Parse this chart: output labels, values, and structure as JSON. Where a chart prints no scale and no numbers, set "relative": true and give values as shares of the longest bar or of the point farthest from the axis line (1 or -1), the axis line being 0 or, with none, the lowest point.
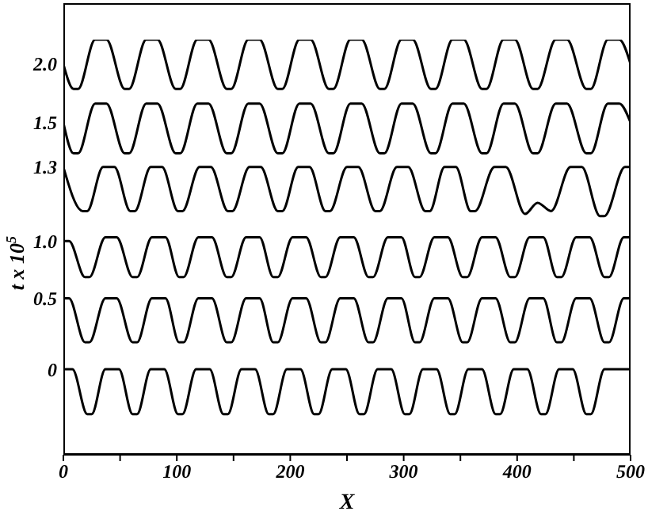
{
  "chart_data": {
    "type": "line",
    "relative": true,
    "xlabel": "X",
    "ylabel": "t x 10$^{5}$",
    "xlim": [
      0,
      500
    ],
    "xticks": [
      0,
      {
        "value": 50,
        "label": null
      },
      100,
      {
        "value": 150,
        "label": null
      },
      200,
      {
        "value": 250,
        "label": null
      },
      300,
      {
        "value": 350,
        "label": null
      },
      400,
      {
        "value": 450,
        "label": null
      },
      500
    ],
    "legend": false,
    "marker": "none",
    "line_style": "solid",
    "series": [
      {
        "name": "0",
        "color": "#000000",
        "x": [
          0,
          8,
          21,
          25,
          37,
          49,
          61,
          65,
          77,
          89,
          101,
          105,
          117,
          129,
          141,
          145,
          157,
          169,
          181,
          185,
          197,
          209,
          221,
          225,
          237,
          249,
          261,
          265,
          277,
          289,
          301,
          305,
          317,
          329,
          341,
          345,
          357,
          369,
          381,
          385,
          397,
          409,
          421,
          425,
          437,
          449,
          461,
          465,
          477,
          489,
          500
        ],
        "values": [
          0.206,
          0.206,
          0.098,
          0.098,
          0.206,
          0.206,
          0.098,
          0.098,
          0.206,
          0.206,
          0.098,
          0.098,
          0.206,
          0.206,
          0.098,
          0.098,
          0.206,
          0.206,
          0.098,
          0.098,
          0.206,
          0.206,
          0.098,
          0.098,
          0.206,
          0.206,
          0.098,
          0.098,
          0.206,
          0.206,
          0.098,
          0.098,
          0.206,
          0.206,
          0.098,
          0.098,
          0.206,
          0.206,
          0.098,
          0.098,
          0.206,
          0.206,
          0.098,
          0.098,
          0.206,
          0.206,
          0.098,
          0.098,
          0.206,
          0.206,
          0.206
        ]
      },
      {
        "color": "#000000",
        "x": [
          0,
          5,
          19,
          23,
          37,
          47,
          61,
          65,
          78,
          90,
          102,
          106,
          119,
          131,
          144,
          148,
          161,
          173,
          185,
          189,
          202,
          214,
          227,
          231,
          244,
          256,
          269,
          273,
          286,
          298,
          310,
          314,
          327,
          339,
          352,
          356,
          369,
          381,
          394,
          398,
          411,
          423,
          435,
          439,
          452,
          464,
          477,
          481,
          494,
          500
        ],
        "name": "0.5",
        "values": [
          0.377,
          0.377,
          0.271,
          0.271,
          0.377,
          0.377,
          0.271,
          0.271,
          0.377,
          0.377,
          0.271,
          0.271,
          0.377,
          0.377,
          0.271,
          0.271,
          0.377,
          0.377,
          0.271,
          0.271,
          0.377,
          0.377,
          0.271,
          0.271,
          0.377,
          0.377,
          0.271,
          0.271,
          0.377,
          0.377,
          0.271,
          0.271,
          0.377,
          0.377,
          0.271,
          0.271,
          0.377,
          0.377,
          0.271,
          0.271,
          0.377,
          0.377,
          0.271,
          0.271,
          0.377,
          0.377,
          0.271,
          0.271,
          0.377,
          0.377
        ]
      },
      {
        "color": "#000000",
        "x": [
          0,
          5,
          19,
          23,
          37,
          47,
          61,
          65,
          78,
          90,
          102,
          106,
          119,
          131,
          144,
          148,
          161,
          173,
          185,
          189,
          202,
          214,
          227,
          231,
          244,
          256,
          269,
          273,
          286,
          298,
          310,
          314,
          327,
          339,
          352,
          356,
          369,
          381,
          394,
          398,
          411,
          423,
          435,
          439,
          452,
          464,
          477,
          481,
          494,
          500
        ],
        "name": "1.0",
        "values": [
          0.515,
          0.515,
          0.428,
          0.428,
          0.524,
          0.524,
          0.428,
          0.428,
          0.524,
          0.524,
          0.428,
          0.428,
          0.524,
          0.524,
          0.428,
          0.428,
          0.524,
          0.524,
          0.428,
          0.428,
          0.524,
          0.524,
          0.428,
          0.428,
          0.524,
          0.524,
          0.428,
          0.428,
          0.524,
          0.524,
          0.428,
          0.428,
          0.524,
          0.524,
          0.428,
          0.428,
          0.524,
          0.524,
          0.428,
          0.428,
          0.524,
          0.524,
          0.428,
          0.428,
          0.524,
          0.524,
          0.428,
          0.428,
          0.524,
          0.524
        ]
      },
      {
        "color": "#000000",
        "x": [
          0,
          17,
          21,
          35,
          45,
          59,
          63,
          77,
          87,
          101,
          105,
          120,
          130,
          145,
          149,
          164,
          174,
          189,
          193,
          207,
          217,
          231,
          235,
          250,
          260,
          275,
          279,
          294,
          304,
          319,
          323,
          336,
          346,
          359,
          363,
          380,
          390,
          407,
          418,
          430,
          447,
          457,
          473,
          477,
          495,
          500
        ],
        "name": "1.3",
        "values": [
          0.693,
          0.587,
          0.587,
          0.693,
          0.693,
          0.587,
          0.587,
          0.693,
          0.693,
          0.587,
          0.587,
          0.693,
          0.693,
          0.587,
          0.587,
          0.693,
          0.693,
          0.587,
          0.587,
          0.693,
          0.693,
          0.587,
          0.587,
          0.693,
          0.693,
          0.587,
          0.587,
          0.693,
          0.693,
          0.587,
          0.587,
          0.693,
          0.693,
          0.587,
          0.587,
          0.693,
          0.693,
          0.58,
          0.607,
          0.587,
          0.693,
          0.693,
          0.575,
          0.575,
          0.693,
          0.693
        ]
      },
      {
        "color": "#000000",
        "x": [
          0,
          9,
          13,
          28,
          38,
          54,
          58,
          73,
          83,
          99,
          103,
          118,
          128,
          144,
          148,
          163,
          173,
          189,
          193,
          208,
          218,
          234,
          238,
          253,
          263,
          279,
          283,
          298,
          308,
          324,
          328,
          343,
          353,
          369,
          373,
          388,
          398,
          414,
          418,
          434,
          444,
          461,
          465,
          480,
          490,
          500
        ],
        "name": "1.5",
        "values": [
          0.8,
          0.726,
          0.726,
          0.846,
          0.846,
          0.726,
          0.726,
          0.846,
          0.846,
          0.726,
          0.726,
          0.846,
          0.846,
          0.726,
          0.726,
          0.846,
          0.846,
          0.726,
          0.726,
          0.846,
          0.846,
          0.726,
          0.726,
          0.846,
          0.846,
          0.726,
          0.726,
          0.846,
          0.846,
          0.726,
          0.726,
          0.846,
          0.846,
          0.726,
          0.726,
          0.846,
          0.846,
          0.726,
          0.726,
          0.846,
          0.846,
          0.726,
          0.726,
          0.846,
          0.846,
          0.8
        ]
      },
      {
        "color": "#000000",
        "x": [
          0,
          9,
          13,
          28,
          38,
          54,
          58,
          73,
          83,
          99,
          103,
          118,
          128,
          144,
          148,
          163,
          173,
          189,
          193,
          208,
          218,
          234,
          238,
          253,
          263,
          279,
          283,
          298,
          308,
          324,
          328,
          343,
          353,
          369,
          373,
          388,
          398,
          414,
          418,
          434,
          444,
          461,
          465,
          480,
          490,
          500
        ],
        "name": "2.0",
        "values": [
          0.941,
          0.881,
          0.881,
          1,
          1,
          0.881,
          0.881,
          1,
          1,
          0.881,
          0.881,
          1,
          1,
          0.881,
          0.881,
          1,
          1,
          0.881,
          0.881,
          1,
          1,
          0.881,
          0.881,
          1,
          1,
          0.881,
          0.881,
          1,
          1,
          0.881,
          0.881,
          1,
          1,
          0.881,
          0.881,
          1,
          1,
          0.881,
          0.881,
          1,
          1,
          0.881,
          0.881,
          1,
          1,
          0.941
        ]
      }
    ]
  }
}
